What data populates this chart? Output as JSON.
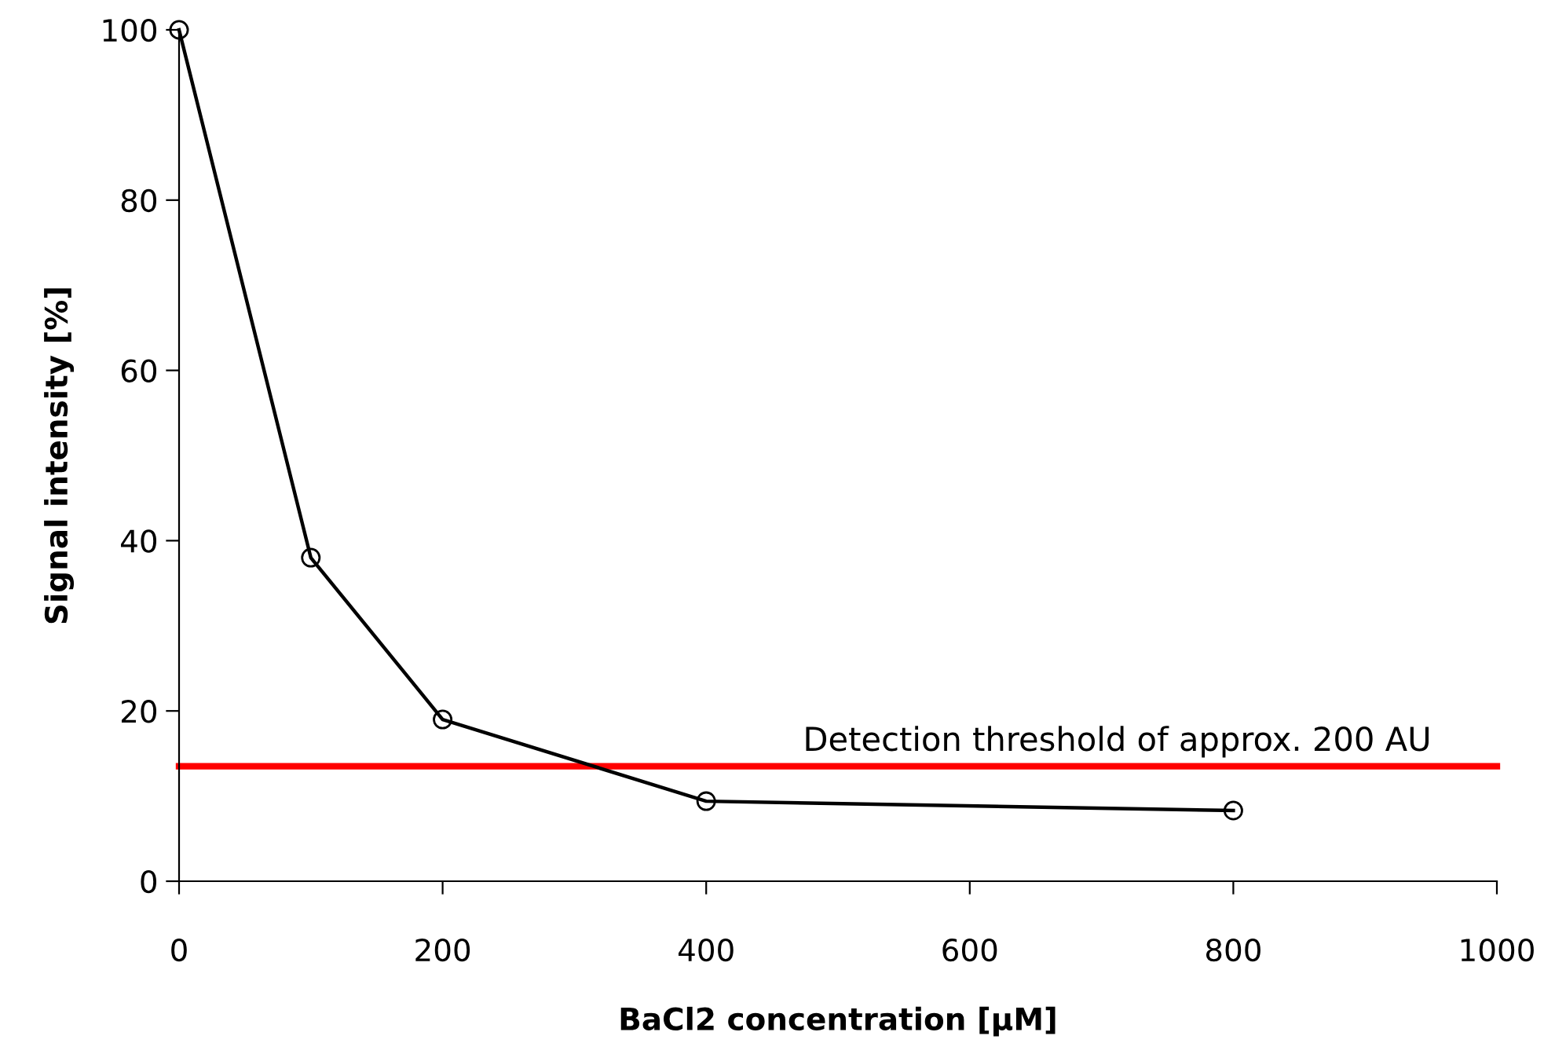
{
  "chart_data": {
    "type": "line",
    "xlabel": "BaCl2 concentration [µM]",
    "ylabel": "Signal intensity [%]",
    "x": [
      0,
      100,
      200,
      400,
      800
    ],
    "series": [
      {
        "color": "#000000",
        "values": [
          100,
          38,
          19,
          9.4,
          8.3
        ]
      }
    ],
    "marker": "circle",
    "line_style": "solid",
    "xlim": [
      0,
      1000
    ],
    "xticks": [
      0,
      200,
      400,
      600,
      800,
      1000
    ],
    "ylim": [
      0,
      100
    ],
    "yticks": [
      0,
      20,
      40,
      60,
      80,
      100
    ],
    "grid": false,
    "ref_lines": [
      {
        "axis": "y",
        "value": 13.5,
        "label": "Detection threshold of approx. 200 AU",
        "color": "#ff0000"
      }
    ]
  }
}
